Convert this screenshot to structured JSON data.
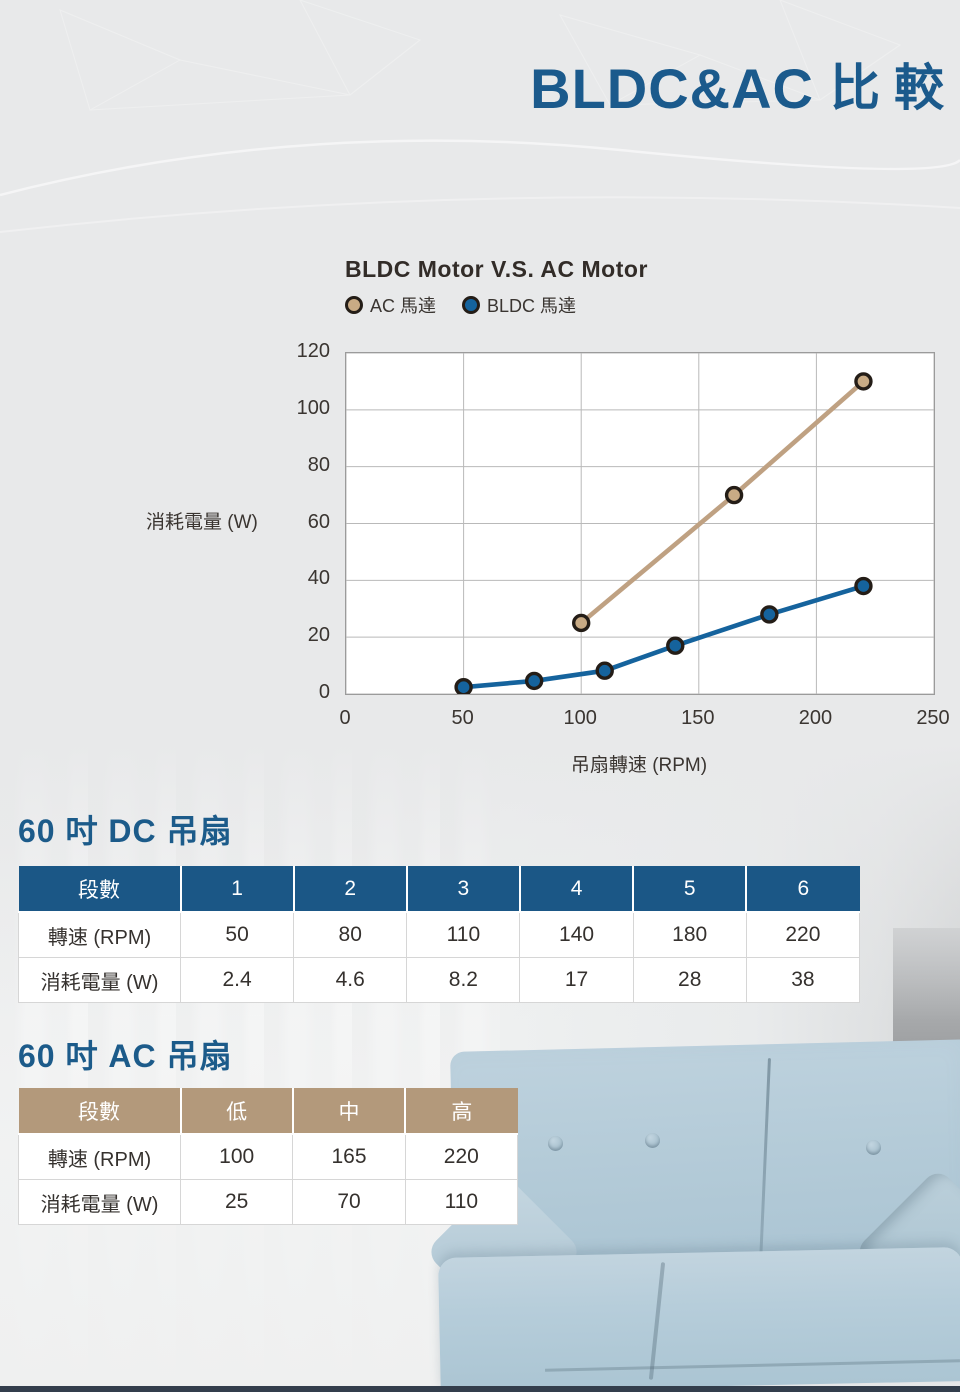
{
  "page_title": {
    "en": "BLDC&AC",
    "cn": "比較"
  },
  "colors": {
    "title_blue": "#1b5a8c",
    "dc_table_header_bg": "#1b5786",
    "ac_table_header_bg": "#b3997b",
    "ac_line": "#bfa182",
    "ac_marker_fill": "#c9ab85",
    "bldc_line": "#15639d",
    "marker_outline": "#241d17",
    "grid": "#b9b9b9",
    "plot_border": "#9b9b9b"
  },
  "chart": {
    "title": "BLDC Motor V.S. AC Motor",
    "ylabel": "消耗電量 (W)",
    "xlabel": "吊扇轉速 (RPM)"
  },
  "chart_data": {
    "type": "line",
    "title": "BLDC Motor V.S. AC Motor",
    "xlabel": "吊扇轉速 (RPM)",
    "ylabel": "消耗電量 (W)",
    "xlim": [
      0,
      250
    ],
    "ylim": [
      0,
      120
    ],
    "xticks": [
      0,
      50,
      100,
      150,
      200,
      250
    ],
    "yticks": [
      0,
      20,
      40,
      60,
      80,
      100,
      120
    ],
    "grid": true,
    "legend_position": "above-top-left",
    "series": [
      {
        "name": "AC 馬達",
        "color": "#bfa182",
        "marker_fill": "#c9ab85",
        "x": [
          100,
          165,
          220
        ],
        "y": [
          25,
          70,
          110
        ]
      },
      {
        "name": "BLDC 馬達",
        "color": "#15639d",
        "marker_fill": "#15639d",
        "x": [
          50,
          80,
          110,
          140,
          180,
          220
        ],
        "y": [
          2.4,
          4.6,
          8.2,
          17,
          28,
          38
        ]
      }
    ]
  },
  "dc_section": {
    "heading": "60 吋 DC 吊扇",
    "table": {
      "header": [
        "段數",
        "1",
        "2",
        "3",
        "4",
        "5",
        "6"
      ],
      "rows": [
        {
          "label": "轉速 (RPM)",
          "values": [
            "50",
            "80",
            "110",
            "140",
            "180",
            "220"
          ]
        },
        {
          "label": "消耗電量 (W)",
          "values": [
            "2.4",
            "4.6",
            "8.2",
            "17",
            "28",
            "38"
          ]
        }
      ]
    }
  },
  "ac_section": {
    "heading": "60 吋 AC 吊扇",
    "table": {
      "header": [
        "段數",
        "低",
        "中",
        "高"
      ],
      "rows": [
        {
          "label": "轉速 (RPM)",
          "values": [
            "100",
            "165",
            "220"
          ]
        },
        {
          "label": "消耗電量 (W)",
          "values": [
            "25",
            "70",
            "110"
          ]
        }
      ]
    }
  }
}
